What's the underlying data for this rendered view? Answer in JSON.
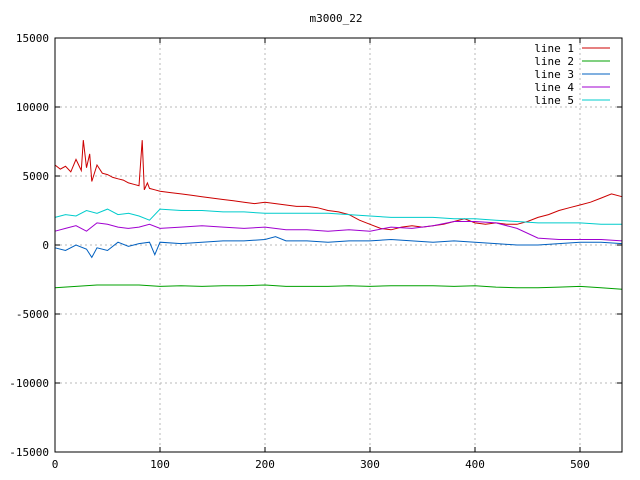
{
  "chart_data": {
    "type": "line",
    "title": "m3000_22",
    "xlabel": "",
    "ylabel": "",
    "xlim": [
      0,
      540
    ],
    "ylim": [
      -15000,
      15000
    ],
    "xticks": [
      0,
      100,
      200,
      300,
      400,
      500
    ],
    "yticks": [
      -15000,
      -10000,
      -5000,
      0,
      5000,
      10000,
      15000
    ],
    "grid": true,
    "legend": "top-right",
    "series": [
      {
        "name": "line 1",
        "color": "#cc0000",
        "x": [
          0,
          5,
          10,
          15,
          20,
          25,
          27,
          30,
          33,
          35,
          40,
          45,
          50,
          55,
          60,
          65,
          70,
          75,
          80,
          83,
          85,
          88,
          90,
          95,
          100,
          110,
          120,
          130,
          140,
          150,
          160,
          170,
          180,
          190,
          200,
          210,
          220,
          230,
          240,
          250,
          260,
          270,
          280,
          290,
          300,
          310,
          320,
          330,
          340,
          350,
          360,
          370,
          380,
          390,
          400,
          410,
          420,
          430,
          440,
          450,
          460,
          470,
          480,
          490,
          500,
          510,
          520,
          530,
          540
        ],
        "y": [
          5800,
          5500,
          5700,
          5300,
          6200,
          5400,
          7600,
          5600,
          6600,
          4600,
          5800,
          5200,
          5100,
          4900,
          4800,
          4700,
          4500,
          4400,
          4300,
          7600,
          4000,
          4500,
          4100,
          4000,
          3900,
          3800,
          3700,
          3600,
          3500,
          3400,
          3300,
          3200,
          3100,
          3000,
          3100,
          3000,
          2900,
          2800,
          2800,
          2700,
          2500,
          2400,
          2200,
          1800,
          1500,
          1200,
          1100,
          1300,
          1400,
          1300,
          1400,
          1500,
          1700,
          1900,
          1600,
          1500,
          1600,
          1500,
          1500,
          1700,
          2000,
          2200,
          2500,
          2700,
          2900,
          3100,
          3400,
          3700,
          3500
        ]
      },
      {
        "name": "line 2",
        "color": "#00a000",
        "x": [
          0,
          20,
          40,
          60,
          80,
          100,
          120,
          140,
          160,
          180,
          200,
          220,
          240,
          260,
          280,
          300,
          320,
          340,
          360,
          380,
          400,
          420,
          440,
          460,
          480,
          500,
          520,
          540
        ],
        "y": [
          -3100,
          -3000,
          -2900,
          -2900,
          -2900,
          -3000,
          -2950,
          -3000,
          -2950,
          -2950,
          -2900,
          -3000,
          -3000,
          -3000,
          -2950,
          -3000,
          -2950,
          -2950,
          -2950,
          -3000,
          -2950,
          -3050,
          -3100,
          -3100,
          -3050,
          -3000,
          -3100,
          -3200
        ]
      },
      {
        "name": "line 3",
        "color": "#0060c0",
        "x": [
          0,
          10,
          20,
          30,
          35,
          40,
          50,
          60,
          70,
          80,
          90,
          95,
          100,
          120,
          140,
          160,
          180,
          200,
          210,
          220,
          240,
          260,
          280,
          300,
          320,
          340,
          360,
          380,
          400,
          420,
          440,
          460,
          480,
          500,
          520,
          540
        ],
        "y": [
          -200,
          -400,
          0,
          -300,
          -900,
          -200,
          -400,
          200,
          -100,
          100,
          200,
          -700,
          200,
          100,
          200,
          300,
          300,
          400,
          600,
          300,
          300,
          200,
          300,
          300,
          400,
          300,
          200,
          300,
          200,
          100,
          0,
          0,
          100,
          200,
          200,
          100
        ]
      },
      {
        "name": "line 4",
        "color": "#a000d0",
        "x": [
          0,
          10,
          20,
          30,
          40,
          50,
          60,
          70,
          80,
          90,
          100,
          120,
          140,
          160,
          180,
          200,
          220,
          240,
          260,
          280,
          300,
          320,
          340,
          360,
          380,
          400,
          420,
          440,
          460,
          480,
          500,
          520,
          540
        ],
        "y": [
          1000,
          1200,
          1400,
          1000,
          1600,
          1500,
          1300,
          1200,
          1300,
          1500,
          1200,
          1300,
          1400,
          1300,
          1200,
          1300,
          1100,
          1100,
          1000,
          1100,
          1000,
          1300,
          1200,
          1400,
          1700,
          1700,
          1600,
          1200,
          500,
          400,
          400,
          400,
          300
        ]
      },
      {
        "name": "line 5",
        "color": "#00cccc",
        "x": [
          0,
          10,
          20,
          30,
          40,
          50,
          60,
          70,
          80,
          90,
          100,
          120,
          140,
          160,
          180,
          200,
          220,
          240,
          260,
          280,
          300,
          320,
          340,
          360,
          380,
          400,
          420,
          440,
          460,
          480,
          500,
          520,
          540
        ],
        "y": [
          2000,
          2200,
          2100,
          2500,
          2300,
          2600,
          2200,
          2300,
          2100,
          1800,
          2600,
          2500,
          2500,
          2400,
          2400,
          2300,
          2300,
          2300,
          2300,
          2200,
          2100,
          2000,
          2000,
          2000,
          1900,
          1900,
          1800,
          1700,
          1600,
          1600,
          1600,
          1500,
          1500
        ]
      }
    ]
  }
}
